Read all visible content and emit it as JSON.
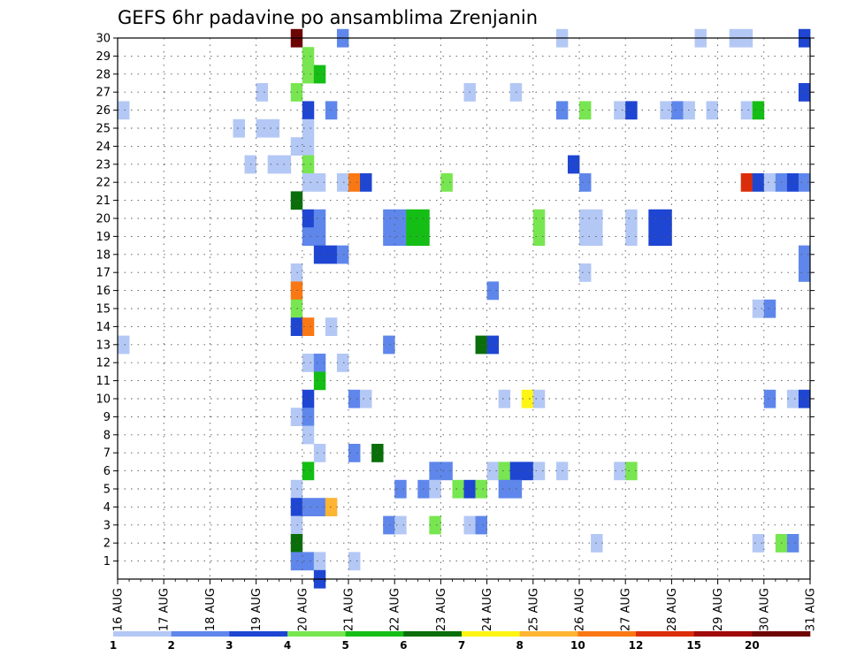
{
  "chart_data": {
    "type": "heatmap",
    "title": "GEFS 6hr padavine po ansamblima Zrenjanin",
    "xlabel": "",
    "ylabel": "",
    "x_tick_labels": [
      "16 AUG",
      "17 AUG",
      "18 AUG",
      "19 AUG",
      "20 AUG",
      "21 AUG",
      "22 AUG",
      "23 AUG",
      "24 AUG",
      "25 AUG",
      "26 AUG",
      "27 AUG",
      "28 AUG",
      "29 AUG",
      "30 AUG",
      "31 AUG"
    ],
    "x_range_days": [
      0,
      15
    ],
    "y_tick_labels": [
      "1",
      "2",
      "3",
      "4",
      "5",
      "6",
      "7",
      "8",
      "9",
      "10",
      "11",
      "12",
      "13",
      "14",
      "15",
      "16",
      "17",
      "18",
      "19",
      "20",
      "21",
      "22",
      "23",
      "24",
      "25",
      "26",
      "27",
      "28",
      "29",
      "30"
    ],
    "y_range": [
      0,
      30
    ],
    "grid": true,
    "colorbar": {
      "labels": [
        "1",
        "2",
        "3",
        "4",
        "5",
        "6",
        "7",
        "8",
        "10",
        "12",
        "15",
        "20"
      ],
      "colors": [
        "#b4c8f5",
        "#5f87eb",
        "#1e46d2",
        "#78e650",
        "#14be14",
        "#0a6e0a",
        "#fff514",
        "#ffb432",
        "#fa7814",
        "#dc2d0a",
        "#a00a0a",
        "#6e0505"
      ]
    },
    "cell_width_days": 0.25,
    "cells": [
      {
        "member": 30,
        "day": 3.75,
        "level": 11
      },
      {
        "member": 30,
        "day": 4.75,
        "level": 1
      },
      {
        "member": 30,
        "day": 9.5,
        "level": 0
      },
      {
        "member": 30,
        "day": 12.5,
        "level": 0
      },
      {
        "member": 30,
        "day": 13.25,
        "level": 0
      },
      {
        "member": 30,
        "day": 13.5,
        "level": 0
      },
      {
        "member": 30,
        "day": 14.75,
        "level": 2
      },
      {
        "member": 29,
        "day": 4,
        "level": 3
      },
      {
        "member": 28,
        "day": 4,
        "level": 3
      },
      {
        "member": 28,
        "day": 4.25,
        "level": 4
      },
      {
        "member": 27,
        "day": 3.0,
        "level": 0
      },
      {
        "member": 27,
        "day": 3.75,
        "level": 3
      },
      {
        "member": 27,
        "day": 7.5,
        "level": 0
      },
      {
        "member": 27,
        "day": 8.5,
        "level": 0
      },
      {
        "member": 27,
        "day": 14.75,
        "level": 2
      },
      {
        "member": 26,
        "day": 0,
        "level": 0
      },
      {
        "member": 26,
        "day": 4,
        "level": 2
      },
      {
        "member": 26,
        "day": 4.5,
        "level": 1
      },
      {
        "member": 26,
        "day": 9.5,
        "level": 1
      },
      {
        "member": 26,
        "day": 10,
        "level": 3
      },
      {
        "member": 26,
        "day": 10.75,
        "level": 0
      },
      {
        "member": 26,
        "day": 11,
        "level": 2
      },
      {
        "member": 26,
        "day": 11.75,
        "level": 0
      },
      {
        "member": 26,
        "day": 12,
        "level": 1
      },
      {
        "member": 26,
        "day": 12.25,
        "level": 0
      },
      {
        "member": 26,
        "day": 12.75,
        "level": 0
      },
      {
        "member": 26,
        "day": 13.5,
        "level": 0
      },
      {
        "member": 26,
        "day": 13.75,
        "level": 4
      },
      {
        "member": 25,
        "day": 2.5,
        "level": 0
      },
      {
        "member": 25,
        "day": 3.0,
        "level": 0
      },
      {
        "member": 25,
        "day": 3.25,
        "level": 0
      },
      {
        "member": 25,
        "day": 4,
        "level": 0
      },
      {
        "member": 24,
        "day": 3.75,
        "level": 0
      },
      {
        "member": 24,
        "day": 4,
        "level": 0
      },
      {
        "member": 23,
        "day": 2.75,
        "level": 0
      },
      {
        "member": 23,
        "day": 3.25,
        "level": 0
      },
      {
        "member": 23,
        "day": 3.5,
        "level": 0
      },
      {
        "member": 23,
        "day": 4,
        "level": 3
      },
      {
        "member": 23,
        "day": 9.75,
        "level": 2
      },
      {
        "member": 22,
        "day": 4,
        "level": 0
      },
      {
        "member": 22,
        "day": 4.25,
        "level": 0
      },
      {
        "member": 22,
        "day": 4.75,
        "level": 0
      },
      {
        "member": 22,
        "day": 5,
        "level": 8
      },
      {
        "member": 22,
        "day": 5.25,
        "level": 2
      },
      {
        "member": 22,
        "day": 7.0,
        "level": 3
      },
      {
        "member": 22,
        "day": 10,
        "level": 1
      },
      {
        "member": 22,
        "day": 13.5,
        "level": 9
      },
      {
        "member": 22,
        "day": 13.75,
        "level": 2
      },
      {
        "member": 22,
        "day": 14,
        "level": 0
      },
      {
        "member": 22,
        "day": 14.25,
        "level": 1
      },
      {
        "member": 22,
        "day": 14.5,
        "level": 2
      },
      {
        "member": 22,
        "day": 14.75,
        "level": 1
      },
      {
        "member": 21,
        "day": 3.75,
        "level": 5
      },
      {
        "member": 20,
        "day": 4,
        "level": 2
      },
      {
        "member": 20,
        "day": 4.25,
        "level": 1
      },
      {
        "member": 20,
        "day": 5.75,
        "level": 1
      },
      {
        "member": 20,
        "day": 6,
        "level": 1
      },
      {
        "member": 20,
        "day": 6.25,
        "level": 4
      },
      {
        "member": 20,
        "day": 6.5,
        "level": 4
      },
      {
        "member": 20,
        "day": 9,
        "level": 3
      },
      {
        "member": 20,
        "day": 10,
        "level": 0
      },
      {
        "member": 20,
        "day": 10.25,
        "level": 0
      },
      {
        "member": 20,
        "day": 11,
        "level": 0
      },
      {
        "member": 20,
        "day": 11.5,
        "level": 2
      },
      {
        "member": 20,
        "day": 11.75,
        "level": 2
      },
      {
        "member": 19,
        "day": 4,
        "level": 1
      },
      {
        "member": 19,
        "day": 4.25,
        "level": 1
      },
      {
        "member": 19,
        "day": 5.75,
        "level": 1
      },
      {
        "member": 19,
        "day": 6,
        "level": 1
      },
      {
        "member": 19,
        "day": 6.25,
        "level": 4
      },
      {
        "member": 19,
        "day": 6.5,
        "level": 4
      },
      {
        "member": 19,
        "day": 9,
        "level": 3
      },
      {
        "member": 19,
        "day": 10,
        "level": 0
      },
      {
        "member": 19,
        "day": 10.25,
        "level": 0
      },
      {
        "member": 19,
        "day": 11,
        "level": 0
      },
      {
        "member": 19,
        "day": 11.5,
        "level": 2
      },
      {
        "member": 19,
        "day": 11.75,
        "level": 2
      },
      {
        "member": 18,
        "day": 4.25,
        "level": 2
      },
      {
        "member": 18,
        "day": 4.5,
        "level": 2
      },
      {
        "member": 18,
        "day": 4.75,
        "level": 1
      },
      {
        "member": 18,
        "day": 14.75,
        "level": 1
      },
      {
        "member": 17,
        "day": 3.75,
        "level": 0
      },
      {
        "member": 17,
        "day": 10,
        "level": 0
      },
      {
        "member": 17,
        "day": 14.75,
        "level": 1
      },
      {
        "member": 16,
        "day": 3.75,
        "level": 8
      },
      {
        "member": 16,
        "day": 8,
        "level": 1
      },
      {
        "member": 15,
        "day": 3.75,
        "level": 3
      },
      {
        "member": 15,
        "day": 13.75,
        "level": 0
      },
      {
        "member": 15,
        "day": 14,
        "level": 1
      },
      {
        "member": 14,
        "day": 3.75,
        "level": 2
      },
      {
        "member": 14,
        "day": 4,
        "level": 8
      },
      {
        "member": 14,
        "day": 4.5,
        "level": 0
      },
      {
        "member": 13,
        "day": 0,
        "level": 0
      },
      {
        "member": 13,
        "day": 5.75,
        "level": 1
      },
      {
        "member": 13,
        "day": 7.75,
        "level": 5
      },
      {
        "member": 13,
        "day": 8,
        "level": 2
      },
      {
        "member": 12,
        "day": 4,
        "level": 0
      },
      {
        "member": 12,
        "day": 4.25,
        "level": 1
      },
      {
        "member": 12,
        "day": 4.75,
        "level": 0
      },
      {
        "member": 11,
        "day": 4.25,
        "level": 4
      },
      {
        "member": 10,
        "day": 4,
        "level": 2
      },
      {
        "member": 10,
        "day": 5,
        "level": 1
      },
      {
        "member": 10,
        "day": 5.25,
        "level": 0
      },
      {
        "member": 10,
        "day": 8.25,
        "level": 0
      },
      {
        "member": 10,
        "day": 8.75,
        "level": 6
      },
      {
        "member": 10,
        "day": 9,
        "level": 0
      },
      {
        "member": 10,
        "day": 14,
        "level": 1
      },
      {
        "member": 10,
        "day": 14.5,
        "level": 0
      },
      {
        "member": 10,
        "day": 14.75,
        "level": 2
      },
      {
        "member": 9,
        "day": 3.75,
        "level": 0
      },
      {
        "member": 9,
        "day": 4,
        "level": 1
      },
      {
        "member": 8,
        "day": 4,
        "level": 0
      },
      {
        "member": 7,
        "day": 4.25,
        "level": 0
      },
      {
        "member": 7,
        "day": 5,
        "level": 1
      },
      {
        "member": 7,
        "day": 5.5,
        "level": 5
      },
      {
        "member": 6,
        "day": 4,
        "level": 4
      },
      {
        "member": 6,
        "day": 6.75,
        "level": 1
      },
      {
        "member": 6,
        "day": 7,
        "level": 1
      },
      {
        "member": 6,
        "day": 8,
        "level": 0
      },
      {
        "member": 6,
        "day": 8.25,
        "level": 3
      },
      {
        "member": 6,
        "day": 8.5,
        "level": 2
      },
      {
        "member": 6,
        "day": 8.75,
        "level": 2
      },
      {
        "member": 6,
        "day": 9.0,
        "level": 0
      },
      {
        "member": 6,
        "day": 9.5,
        "level": 0
      },
      {
        "member": 6,
        "day": 10.75,
        "level": 0
      },
      {
        "member": 6,
        "day": 11,
        "level": 3
      },
      {
        "member": 5,
        "day": 3.75,
        "level": 0
      },
      {
        "member": 5,
        "day": 6,
        "level": 1
      },
      {
        "member": 5,
        "day": 6.5,
        "level": 1
      },
      {
        "member": 5,
        "day": 6.75,
        "level": 0
      },
      {
        "member": 5,
        "day": 7.25,
        "level": 3
      },
      {
        "member": 5,
        "day": 7.5,
        "level": 2
      },
      {
        "member": 5,
        "day": 7.75,
        "level": 3
      },
      {
        "member": 5,
        "day": 8.25,
        "level": 1
      },
      {
        "member": 5,
        "day": 8.5,
        "level": 1
      },
      {
        "member": 4,
        "day": 3.75,
        "level": 2
      },
      {
        "member": 4,
        "day": 4,
        "level": 1
      },
      {
        "member": 4,
        "day": 4.25,
        "level": 1
      },
      {
        "member": 4,
        "day": 4.5,
        "level": 7
      },
      {
        "member": 3,
        "day": 3.75,
        "level": 0
      },
      {
        "member": 3,
        "day": 5.75,
        "level": 1
      },
      {
        "member": 3,
        "day": 6,
        "level": 0
      },
      {
        "member": 3,
        "day": 6.75,
        "level": 3
      },
      {
        "member": 3,
        "day": 7.5,
        "level": 0
      },
      {
        "member": 3,
        "day": 7.75,
        "level": 1
      },
      {
        "member": 2,
        "day": 3.75,
        "level": 5
      },
      {
        "member": 2,
        "day": 10.25,
        "level": 0
      },
      {
        "member": 2,
        "day": 13.75,
        "level": 0
      },
      {
        "member": 2,
        "day": 14.25,
        "level": 3
      },
      {
        "member": 2,
        "day": 14.5,
        "level": 1
      },
      {
        "member": 1,
        "day": 3.75,
        "level": 1
      },
      {
        "member": 1,
        "day": 4,
        "level": 1
      },
      {
        "member": 1,
        "day": 4.25,
        "level": 0
      },
      {
        "member": 1,
        "day": 5,
        "level": 0
      },
      {
        "member": 0,
        "day": 4.25,
        "level": 2
      }
    ]
  }
}
